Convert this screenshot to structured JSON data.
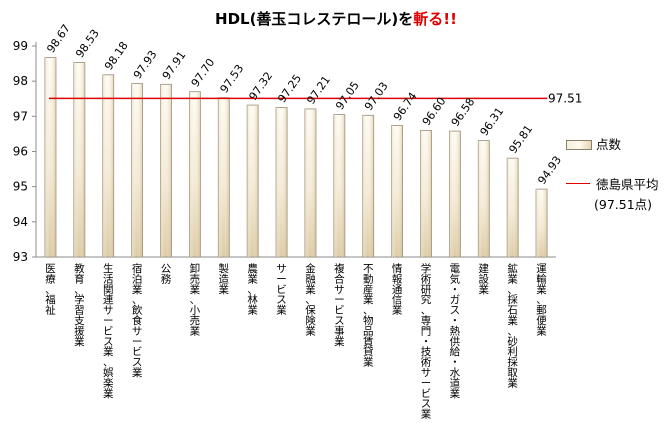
{
  "title": {
    "main": "HDL(善玉コレステロール)を",
    "accent": "斬る!!"
  },
  "legend": {
    "bar_label": "点数",
    "line_label": "徳島県平均",
    "line_sub": "(97.51点)"
  },
  "colors": {
    "bar_light": "#fffbf2",
    "bar_dark": "#dccaa4",
    "avg_line": "#e00000",
    "plot_bg": "#ffffff"
  },
  "chart_data": {
    "type": "bar",
    "title": "HDL(善玉コレステロール)を斬る!!",
    "xlabel": "",
    "ylabel": "",
    "ylim": [
      93,
      99
    ],
    "yticks": [
      93,
      94,
      95,
      96,
      97,
      98,
      99
    ],
    "grid": false,
    "legend_position": "right",
    "categories": [
      "医療、福祉",
      "教育、学習支援業",
      "生活関連サービス業、娯楽業",
      "宿泊業、飲食サービス業",
      "公務",
      "卸売業、小売業",
      "製造業",
      "農業、林業",
      "サービス業",
      "金融業、保険業",
      "複合サービス事業",
      "不動産業、物品賃貸業",
      "情報通信業",
      "学術研究、専門・技術サービス業",
      "電気・ガス・熱供給・水道業",
      "建設業",
      "鉱業、採石業、砂利採取業",
      "運輸業、郵便業"
    ],
    "series": [
      {
        "name": "点数",
        "values": [
          98.67,
          98.53,
          98.18,
          97.93,
          97.91,
          97.7,
          97.53,
          97.32,
          97.25,
          97.21,
          97.05,
          97.03,
          96.74,
          96.6,
          96.58,
          96.31,
          95.81,
          94.93
        ]
      }
    ],
    "value_labels": [
      "98.67",
      "98.53",
      "98.18",
      "97.93",
      "97.91",
      "97.70",
      "97.53",
      "97.32",
      "97.25",
      "97.21",
      "97.05",
      "97.03",
      "96.74",
      "96.60",
      "96.58",
      "96.31",
      "95.81",
      "94.93"
    ],
    "average": {
      "name": "徳島県平均",
      "value": 97.51,
      "label": "97.51"
    }
  }
}
